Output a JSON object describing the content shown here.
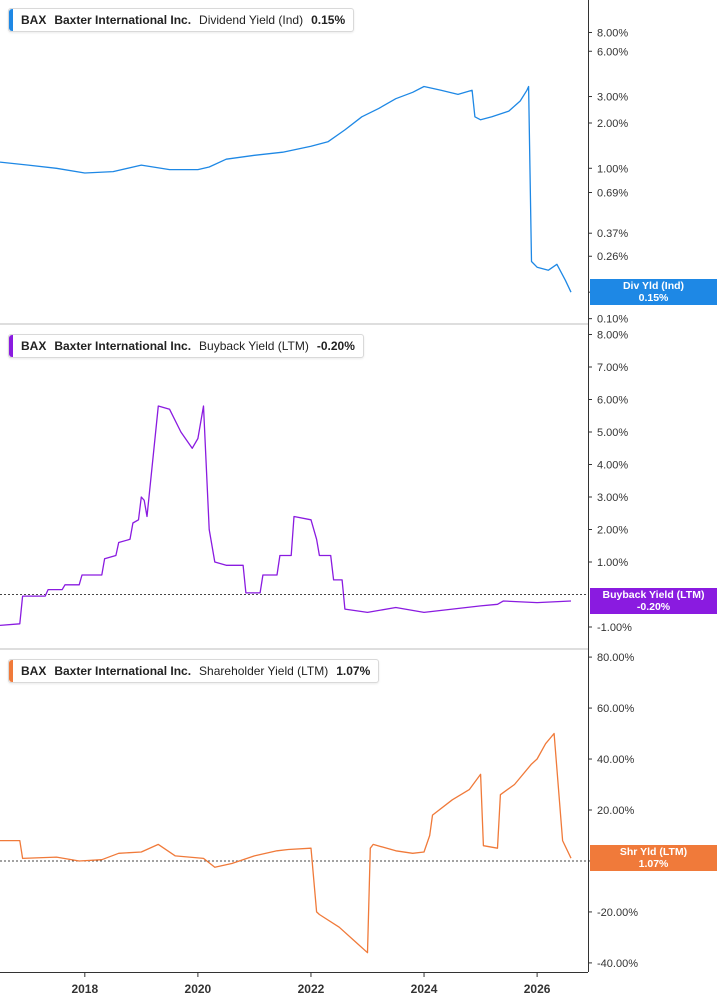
{
  "legend": {
    "ticker": "BAX",
    "company": "Baxter International Inc."
  },
  "colors": {
    "dividend": "#1e88e5",
    "buyback": "#8a1be0",
    "shareholder": "#f07a3a",
    "grid": "#d0d0d0"
  },
  "chart_data": [
    {
      "type": "line",
      "panel": "dividend",
      "metric": "Dividend Yield (Ind)",
      "value": "0.15%",
      "tag": {
        "line1": "Div Yld (Ind)",
        "line2": "0.15%"
      },
      "scale": "log",
      "ylim": [
        0.095,
        12
      ],
      "ticks": [
        {
          "v": 8,
          "l": "8.00%"
        },
        {
          "v": 6,
          "l": "6.00%"
        },
        {
          "v": 3,
          "l": "3.00%"
        },
        {
          "v": 2,
          "l": "2.00%"
        },
        {
          "v": 1,
          "l": "1.00%"
        },
        {
          "v": 0.69,
          "l": "0.69%"
        },
        {
          "v": 0.37,
          "l": "0.37%"
        },
        {
          "v": 0.26,
          "l": "0.26%"
        },
        {
          "v": 0.15,
          "l": "0.15%"
        },
        {
          "v": 0.1,
          "l": "0.10%"
        }
      ],
      "x": [
        2016.5,
        2017.0,
        2017.5,
        2018.0,
        2018.5,
        2019.0,
        2019.5,
        2020.0,
        2020.2,
        2020.5,
        2021.0,
        2021.5,
        2022.0,
        2022.3,
        2022.6,
        2022.9,
        2023.2,
        2023.5,
        2023.8,
        2024.0,
        2024.3,
        2024.6,
        2024.85,
        2024.9,
        2025.0,
        2025.2,
        2025.5,
        2025.7,
        2025.82,
        2025.85,
        2025.9,
        2026.0,
        2026.2,
        2026.35,
        2026.5,
        2026.6
      ],
      "y": [
        1.1,
        1.05,
        1.0,
        0.93,
        0.95,
        1.05,
        0.98,
        0.98,
        1.02,
        1.15,
        1.22,
        1.28,
        1.4,
        1.5,
        1.8,
        2.2,
        2.5,
        2.9,
        3.2,
        3.5,
        3.3,
        3.1,
        3.3,
        2.2,
        2.1,
        2.2,
        2.4,
        2.8,
        3.3,
        3.5,
        0.24,
        0.22,
        0.21,
        0.23,
        0.18,
        0.15
      ]
    },
    {
      "type": "line",
      "panel": "buyback",
      "metric": "Buyback Yield (LTM)",
      "value": "-0.20%",
      "tag": {
        "line1": "Buyback Yield (LTM)",
        "line2": "-0.20%"
      },
      "scale": "linear",
      "ylim": [
        -1.4,
        8.2
      ],
      "zero_line": true,
      "ticks": [
        {
          "v": 8,
          "l": "8.00%"
        },
        {
          "v": 7,
          "l": "7.00%"
        },
        {
          "v": 6,
          "l": "6.00%"
        },
        {
          "v": 5,
          "l": "5.00%"
        },
        {
          "v": 4,
          "l": "4.00%"
        },
        {
          "v": 3,
          "l": "3.00%"
        },
        {
          "v": 2,
          "l": "2.00%"
        },
        {
          "v": 1,
          "l": "1.00%"
        },
        {
          "v": -1,
          "l": "-1.00%"
        }
      ],
      "x": [
        2016.5,
        2016.85,
        2016.9,
        2017.3,
        2017.35,
        2017.6,
        2017.65,
        2017.9,
        2017.95,
        2018.3,
        2018.35,
        2018.55,
        2018.6,
        2018.8,
        2018.85,
        2018.95,
        2019.0,
        2019.05,
        2019.1,
        2019.3,
        2019.5,
        2019.7,
        2019.9,
        2020.0,
        2020.1,
        2020.2,
        2020.3,
        2020.5,
        2020.8,
        2020.85,
        2021.1,
        2021.15,
        2021.4,
        2021.45,
        2021.65,
        2021.7,
        2022.0,
        2022.1,
        2022.15,
        2022.35,
        2022.4,
        2022.55,
        2022.6,
        2023.0,
        2023.5,
        2024.0,
        2024.5,
        2025.0,
        2025.3,
        2025.4,
        2026.0,
        2026.6
      ],
      "y": [
        -0.95,
        -0.9,
        -0.05,
        -0.05,
        0.15,
        0.15,
        0.3,
        0.3,
        0.6,
        0.6,
        1.1,
        1.2,
        1.6,
        1.7,
        2.2,
        2.3,
        3.0,
        2.9,
        2.4,
        5.8,
        5.7,
        5.0,
        4.5,
        4.8,
        5.8,
        2.0,
        1.0,
        0.9,
        0.9,
        0.05,
        0.05,
        0.6,
        0.6,
        1.2,
        1.2,
        2.4,
        2.3,
        1.7,
        1.2,
        1.2,
        0.45,
        0.45,
        -0.45,
        -0.55,
        -0.4,
        -0.55,
        -0.45,
        -0.35,
        -0.3,
        -0.2,
        -0.25,
        -0.2
      ]
    },
    {
      "type": "line",
      "panel": "shareholder",
      "metric": "Shareholder Yield (LTM)",
      "value": "1.07%",
      "tag": {
        "line1": "Shr Yld (LTM)",
        "line2": "1.07%"
      },
      "scale": "linear",
      "ylim": [
        -42,
        82
      ],
      "zero_line": true,
      "ticks": [
        {
          "v": 80,
          "l": "80.00%"
        },
        {
          "v": 60,
          "l": "60.00%"
        },
        {
          "v": 40,
          "l": "40.00%"
        },
        {
          "v": 20,
          "l": "20.00%"
        },
        {
          "v": 0,
          "l": "0.00%"
        },
        {
          "v": -20,
          "l": "-20.00%"
        },
        {
          "v": -40,
          "l": "-40.00%"
        }
      ],
      "x": [
        2016.5,
        2016.85,
        2016.9,
        2017.5,
        2017.9,
        2018.3,
        2018.6,
        2019.0,
        2019.3,
        2019.6,
        2020.1,
        2020.3,
        2020.6,
        2021.0,
        2021.4,
        2021.6,
        2022.0,
        2022.1,
        2022.15,
        2022.5,
        2022.8,
        2023.0,
        2023.05,
        2023.1,
        2023.5,
        2023.8,
        2024.0,
        2024.1,
        2024.15,
        2024.5,
        2024.8,
        2025.0,
        2025.05,
        2025.3,
        2025.35,
        2025.6,
        2025.9,
        2026.0,
        2026.15,
        2026.3,
        2026.45,
        2026.6
      ],
      "y": [
        8.0,
        8.0,
        1.0,
        1.5,
        0.0,
        0.5,
        3.0,
        3.5,
        6.5,
        2.0,
        1.0,
        -2.5,
        -1.0,
        2.0,
        4.0,
        4.5,
        5.0,
        -20.0,
        -21.0,
        -26.0,
        -32.0,
        -36.0,
        5.0,
        6.5,
        4.0,
        3.0,
        3.5,
        10.0,
        18.0,
        24.0,
        28.0,
        34.0,
        6.0,
        5.0,
        26.0,
        30.0,
        38.0,
        40.0,
        46.0,
        50.0,
        8.0,
        1.07
      ]
    }
  ],
  "x_axis": {
    "range": [
      2016.5,
      2026.9
    ],
    "ticks": [
      {
        "v": 2018,
        "l": "2018"
      },
      {
        "v": 2020,
        "l": "2020"
      },
      {
        "v": 2022,
        "l": "2022"
      },
      {
        "v": 2024,
        "l": "2024"
      },
      {
        "v": 2026,
        "l": "2026"
      }
    ]
  }
}
